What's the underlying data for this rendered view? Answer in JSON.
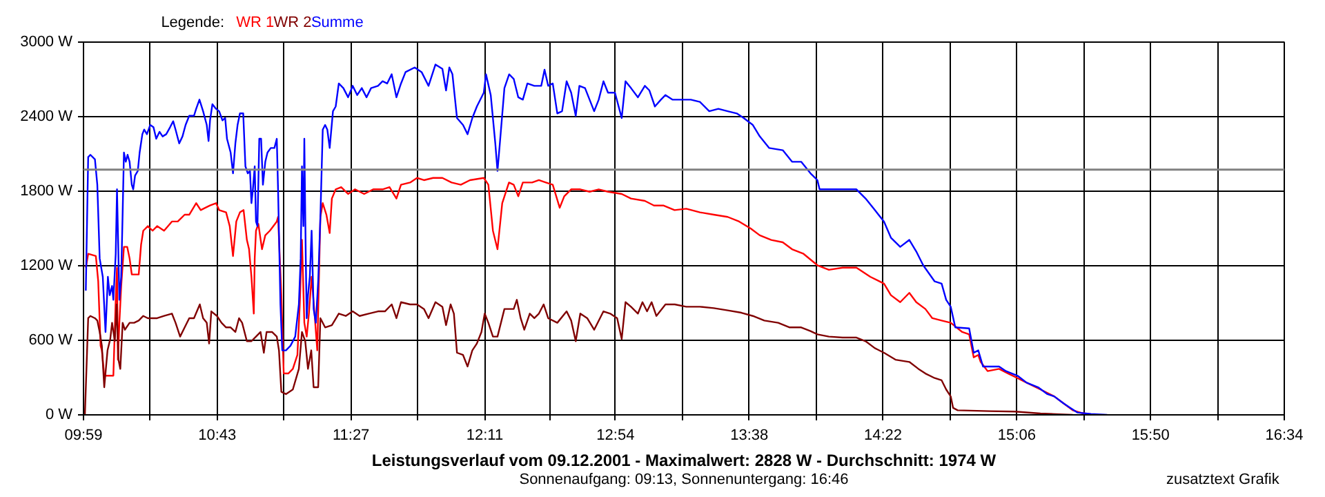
{
  "chart_data": {
    "type": "line",
    "title": "Leistungsverlauf vom 09.12.2001 - Maximalwert: 2828 W - Durchschnitt: 1974 W",
    "subtitle": "Sonnenaufgang: 09:13, Sonnenuntergang: 16:46",
    "annotations": [
      "zusatztext Grafik"
    ],
    "legend_title": "Legende:",
    "grid": true,
    "marker": "none",
    "line_style": "solid",
    "xlim": [
      9.9833,
      16.5667
    ],
    "ylim": [
      0,
      3000
    ],
    "xticks": [
      {
        "value": 9.9833,
        "label": "09:59"
      },
      {
        "value": 10.35,
        "label": null
      },
      {
        "value": 10.7167,
        "label": "10:43"
      },
      {
        "value": 11.0833,
        "label": null
      },
      {
        "value": 11.45,
        "label": "11:27"
      },
      {
        "value": 11.8167,
        "label": null
      },
      {
        "value": 12.1833,
        "label": "12:11"
      },
      {
        "value": 12.5417,
        "label": null
      },
      {
        "value": 12.9,
        "label": "12:54"
      },
      {
        "value": 13.2667,
        "label": null
      },
      {
        "value": 13.6333,
        "label": "13:38"
      },
      {
        "value": 14.0,
        "label": null
      },
      {
        "value": 14.3667,
        "label": "14:22"
      },
      {
        "value": 14.7333,
        "label": null
      },
      {
        "value": 15.1,
        "label": "15:06"
      },
      {
        "value": 15.4667,
        "label": null
      },
      {
        "value": 15.8333,
        "label": "15:50"
      },
      {
        "value": 16.2,
        "label": null
      },
      {
        "value": 16.5667,
        "label": "16:34"
      }
    ],
    "yticks": [
      {
        "value": 0,
        "label": "0 W"
      },
      {
        "value": 600,
        "label": "600 W"
      },
      {
        "value": 1200,
        "label": "1200 W"
      },
      {
        "value": 1800,
        "label": "1800 W"
      },
      {
        "value": 2400,
        "label": "2400 W"
      },
      {
        "value": 3000,
        "label": "3000 W"
      }
    ],
    "ref_lines": [
      {
        "axis": "y",
        "value": 1974,
        "color": "#808080"
      }
    ],
    "series": [
      {
        "name": "WR 1",
        "color": "#ff0000",
        "x": [
          9.996,
          10.009,
          10.051,
          10.064,
          10.077,
          10.084,
          10.097,
          10.147,
          10.16,
          10.167,
          10.172,
          10.18,
          10.19,
          10.205,
          10.223,
          10.236,
          10.248,
          10.286,
          10.299,
          10.311,
          10.336,
          10.362,
          10.387,
          10.425,
          10.468,
          10.5,
          10.538,
          10.563,
          10.601,
          10.626,
          10.652,
          10.677,
          10.71,
          10.727,
          10.765,
          10.785,
          10.803,
          10.821,
          10.841,
          10.861,
          10.879,
          10.891,
          10.904,
          10.917,
          10.922,
          10.929,
          10.942,
          10.962,
          10.98,
          11.005,
          11.043,
          11.05,
          11.058,
          11.068,
          11.081,
          11.106,
          11.131,
          11.156,
          11.169,
          11.181,
          11.194,
          11.207,
          11.219,
          11.234,
          11.25,
          11.265,
          11.282,
          11.295,
          11.315,
          11.333,
          11.345,
          11.366,
          11.396,
          11.434,
          11.472,
          11.522,
          11.572,
          11.623,
          11.661,
          11.699,
          11.724,
          11.774,
          11.812,
          11.85,
          11.9,
          11.951,
          12.001,
          12.052,
          12.102,
          12.178,
          12.203,
          12.228,
          12.253,
          12.279,
          12.316,
          12.342,
          12.367,
          12.392,
          12.443,
          12.48,
          12.518,
          12.556,
          12.594,
          12.619,
          12.657,
          12.707,
          12.758,
          12.808,
          12.859,
          12.934,
          12.985,
          13.061,
          13.111,
          13.162,
          13.224,
          13.288,
          13.363,
          13.439,
          13.515,
          13.578,
          13.641,
          13.691,
          13.754,
          13.817,
          13.868,
          13.931,
          14.007,
          14.07,
          14.145,
          14.221,
          14.297,
          14.372,
          14.41,
          14.461,
          14.511,
          14.549,
          14.599,
          14.637,
          14.688,
          14.738,
          14.801,
          14.839,
          14.864,
          14.889,
          14.902,
          14.94,
          15.003,
          15.053,
          15.104,
          15.154,
          15.23,
          15.306,
          15.356,
          15.407,
          15.457,
          15.52
        ],
        "values": [
          1185,
          1296,
          1278,
          1074,
          556,
          519,
          315,
          315,
          926,
          1185,
          444,
          741,
          1037,
          1352,
          1352,
          1259,
          1130,
          1130,
          1370,
          1482,
          1519,
          1482,
          1519,
          1482,
          1556,
          1556,
          1611,
          1611,
          1704,
          1648,
          1667,
          1685,
          1704,
          1648,
          1630,
          1519,
          1278,
          1556,
          1630,
          1648,
          1408,
          1333,
          1111,
          815,
          1259,
          1482,
          1537,
          1333,
          1445,
          1482,
          1556,
          1593,
          1315,
          963,
          333,
          333,
          370,
          482,
          889,
          1408,
          741,
          630,
          815,
          1111,
          815,
          519,
          1593,
          1704,
          1611,
          1463,
          1741,
          1815,
          1833,
          1778,
          1815,
          1778,
          1815,
          1815,
          1833,
          1741,
          1852,
          1870,
          1907,
          1889,
          1907,
          1907,
          1870,
          1852,
          1889,
          1907,
          1852,
          1482,
          1333,
          1704,
          1870,
          1852,
          1759,
          1870,
          1870,
          1889,
          1870,
          1852,
          1667,
          1759,
          1815,
          1815,
          1796,
          1815,
          1796,
          1778,
          1741,
          1722,
          1685,
          1685,
          1648,
          1659,
          1630,
          1611,
          1593,
          1556,
          1500,
          1445,
          1408,
          1389,
          1333,
          1296,
          1204,
          1167,
          1185,
          1185,
          1111,
          1056,
          963,
          907,
          982,
          907,
          852,
          778,
          759,
          741,
          667,
          648,
          463,
          482,
          426,
          352,
          370,
          333,
          296,
          259,
          204,
          148,
          93,
          37,
          15,
          0
        ]
      },
      {
        "name": "WR 2",
        "color": "#800000",
        "x": [
          9.991,
          10.009,
          10.021,
          10.046,
          10.059,
          10.072,
          10.084,
          10.097,
          10.115,
          10.13,
          10.14,
          10.155,
          10.165,
          10.175,
          10.185,
          10.198,
          10.21,
          10.236,
          10.261,
          10.286,
          10.311,
          10.336,
          10.387,
          10.425,
          10.468,
          10.488,
          10.513,
          10.538,
          10.563,
          10.589,
          10.621,
          10.639,
          10.659,
          10.672,
          10.684,
          10.715,
          10.74,
          10.765,
          10.79,
          10.816,
          10.836,
          10.853,
          10.879,
          10.904,
          10.929,
          10.954,
          10.972,
          10.987,
          11.017,
          11.043,
          11.055,
          11.068,
          11.093,
          11.131,
          11.164,
          11.181,
          11.199,
          11.214,
          11.232,
          11.245,
          11.27,
          11.282,
          11.308,
          11.345,
          11.383,
          11.421,
          11.459,
          11.497,
          11.547,
          11.598,
          11.636,
          11.673,
          11.699,
          11.724,
          11.774,
          11.812,
          11.85,
          11.875,
          11.913,
          11.951,
          11.971,
          11.996,
          12.014,
          12.031,
          12.064,
          12.089,
          12.115,
          12.14,
          12.165,
          12.183,
          12.203,
          12.228,
          12.253,
          12.291,
          12.342,
          12.359,
          12.38,
          12.4,
          12.43,
          12.455,
          12.48,
          12.506,
          12.531,
          12.581,
          12.632,
          12.657,
          12.682,
          12.707,
          12.745,
          12.783,
          12.834,
          12.871,
          12.909,
          12.934,
          12.955,
          12.985,
          13.023,
          13.048,
          13.073,
          13.098,
          13.124,
          13.174,
          13.225,
          13.288,
          13.363,
          13.439,
          13.515,
          13.59,
          13.653,
          13.716,
          13.792,
          13.855,
          13.918,
          13.969,
          14.007,
          14.07,
          14.145,
          14.221,
          14.271,
          14.322,
          14.372,
          14.435,
          14.511,
          14.561,
          14.599,
          14.65,
          14.688,
          14.713,
          14.738,
          14.751,
          14.776,
          14.952,
          15.091,
          15.23,
          15.407
        ],
        "values": [
          0,
          778,
          796,
          778,
          759,
          667,
          556,
          222,
          519,
          611,
          741,
          593,
          889,
          444,
          370,
          741,
          685,
          741,
          741,
          759,
          796,
          778,
          778,
          796,
          815,
          741,
          630,
          704,
          778,
          778,
          889,
          778,
          741,
          574,
          833,
          796,
          741,
          704,
          704,
          667,
          778,
          741,
          593,
          593,
          630,
          667,
          500,
          667,
          667,
          630,
          519,
          185,
          167,
          204,
          370,
          667,
          593,
          370,
          519,
          222,
          222,
          778,
          704,
          722,
          815,
          796,
          833,
          796,
          815,
          833,
          833,
          889,
          778,
          907,
          889,
          889,
          852,
          778,
          907,
          870,
          722,
          889,
          815,
          500,
          482,
          389,
          519,
          574,
          667,
          815,
          741,
          630,
          630,
          852,
          852,
          926,
          778,
          685,
          815,
          778,
          815,
          889,
          778,
          741,
          833,
          759,
          593,
          815,
          778,
          685,
          833,
          815,
          778,
          611,
          907,
          870,
          815,
          907,
          833,
          907,
          796,
          889,
          889,
          870,
          870,
          859,
          841,
          822,
          796,
          759,
          741,
          704,
          704,
          674,
          648,
          630,
          622,
          622,
          593,
          537,
          500,
          444,
          426,
          370,
          333,
          296,
          278,
          204,
          148,
          56,
          37,
          30,
          26,
          11,
          0
        ]
      },
      {
        "name": "Summe",
        "color": "#0000ff",
        "x": [
          9.996,
          10.009,
          10.021,
          10.046,
          10.059,
          10.072,
          10.089,
          10.104,
          10.117,
          10.127,
          10.14,
          10.147,
          10.16,
          10.167,
          10.18,
          10.19,
          10.198,
          10.205,
          10.215,
          10.225,
          10.236,
          10.248,
          10.256,
          10.266,
          10.281,
          10.291,
          10.306,
          10.316,
          10.331,
          10.349,
          10.367,
          10.382,
          10.4,
          10.417,
          10.437,
          10.458,
          10.475,
          10.488,
          10.508,
          10.526,
          10.543,
          10.563,
          10.589,
          10.601,
          10.619,
          10.639,
          10.659,
          10.669,
          10.677,
          10.69,
          10.71,
          10.727,
          10.745,
          10.76,
          10.77,
          10.79,
          10.803,
          10.816,
          10.828,
          10.841,
          10.859,
          10.871,
          10.884,
          10.896,
          10.904,
          10.912,
          10.922,
          10.929,
          10.937,
          10.947,
          10.957,
          10.967,
          10.98,
          10.992,
          11.01,
          11.03,
          11.043,
          11.05,
          11.063,
          11.073,
          11.093,
          11.118,
          11.144,
          11.164,
          11.174,
          11.181,
          11.189,
          11.194,
          11.202,
          11.207,
          11.214,
          11.224,
          11.234,
          11.245,
          11.257,
          11.27,
          11.282,
          11.295,
          11.308,
          11.32,
          11.333,
          11.351,
          11.366,
          11.383,
          11.408,
          11.434,
          11.459,
          11.484,
          11.509,
          11.535,
          11.56,
          11.598,
          11.623,
          11.648,
          11.673,
          11.699,
          11.724,
          11.749,
          11.799,
          11.837,
          11.875,
          11.913,
          11.951,
          11.971,
          11.989,
          12.006,
          12.031,
          12.064,
          12.089,
          12.115,
          12.14,
          12.178,
          12.19,
          12.216,
          12.241,
          12.253,
          12.266,
          12.291,
          12.317,
          12.342,
          12.367,
          12.392,
          12.417,
          12.455,
          12.493,
          12.511,
          12.531,
          12.556,
          12.581,
          12.607,
          12.632,
          12.657,
          12.682,
          12.702,
          12.733,
          12.783,
          12.808,
          12.834,
          12.859,
          12.897,
          12.934,
          12.955,
          12.985,
          13.023,
          13.061,
          13.086,
          13.116,
          13.149,
          13.174,
          13.212,
          13.262,
          13.313,
          13.363,
          13.414,
          13.464,
          13.515,
          13.565,
          13.603,
          13.653,
          13.691,
          13.742,
          13.817,
          13.868,
          13.918,
          13.969,
          14.007,
          14.019,
          14.07,
          14.12,
          14.171,
          14.221,
          14.271,
          14.322,
          14.372,
          14.41,
          14.461,
          14.511,
          14.549,
          14.587,
          14.65,
          14.688,
          14.713,
          14.738,
          14.763,
          14.839,
          14.864,
          14.889,
          14.915,
          14.952,
          15.003,
          15.041,
          15.104,
          15.154,
          15.217,
          15.268,
          15.306,
          15.356,
          15.394,
          15.432,
          15.507,
          15.596
        ],
        "values": [
          1000,
          2074,
          2093,
          2056,
          1852,
          1259,
          1111,
          667,
          1111,
          963,
          1037,
          926,
          1296,
          1815,
          926,
          1111,
          1630,
          2111,
          2037,
          2093,
          2037,
          1852,
          1815,
          1926,
          1963,
          2111,
          2259,
          2296,
          2259,
          2333,
          2315,
          2222,
          2278,
          2241,
          2259,
          2315,
          2363,
          2296,
          2185,
          2241,
          2333,
          2407,
          2407,
          2463,
          2537,
          2444,
          2333,
          2204,
          2370,
          2500,
          2463,
          2444,
          2370,
          2389,
          2222,
          2111,
          1944,
          2185,
          2333,
          2426,
          2426,
          2000,
          1944,
          1963,
          1704,
          1815,
          2000,
          1556,
          1519,
          2222,
          2222,
          1852,
          2037,
          2111,
          2148,
          2148,
          2222,
          1815,
          889,
          519,
          519,
          556,
          630,
          889,
          1259,
          2000,
          1519,
          2222,
          1259,
          778,
          963,
          1111,
          1482,
          852,
          741,
          1074,
          1593,
          2296,
          2333,
          2296,
          2148,
          2444,
          2482,
          2667,
          2630,
          2556,
          2648,
          2574,
          2630,
          2556,
          2630,
          2648,
          2685,
          2667,
          2741,
          2556,
          2667,
          2759,
          2796,
          2759,
          2648,
          2820,
          2785,
          2611,
          2796,
          2741,
          2389,
          2333,
          2259,
          2389,
          2482,
          2593,
          2741,
          2574,
          2185,
          1963,
          2185,
          2630,
          2741,
          2704,
          2556,
          2537,
          2667,
          2648,
          2648,
          2778,
          2648,
          2667,
          2426,
          2444,
          2685,
          2593,
          2407,
          2648,
          2630,
          2444,
          2537,
          2685,
          2593,
          2593,
          2389,
          2685,
          2630,
          2556,
          2648,
          2611,
          2482,
          2537,
          2574,
          2537,
          2537,
          2537,
          2519,
          2444,
          2463,
          2444,
          2426,
          2389,
          2333,
          2241,
          2148,
          2130,
          2037,
          2037,
          1944,
          1889,
          1815,
          1815,
          1815,
          1815,
          1815,
          1741,
          1648,
          1556,
          1426,
          1352,
          1408,
          1315,
          1204,
          1074,
          1056,
          926,
          870,
          704,
          696,
          500,
          519,
          389,
          389,
          389,
          352,
          315,
          259,
          222,
          167,
          148,
          93,
          56,
          19,
          7,
          0
        ]
      }
    ]
  }
}
